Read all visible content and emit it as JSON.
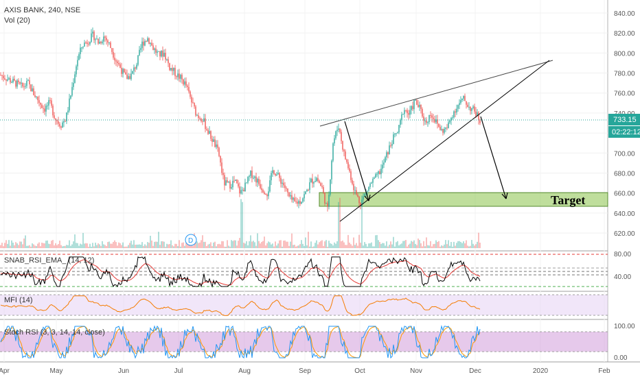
{
  "header": {
    "symbol": "AXIS BANK, 240, NSE",
    "volume_label": "Vol (20)"
  },
  "colors": {
    "up": "#26a69a",
    "down": "#ef5350",
    "rsi_line": "#000000",
    "rsi_ema": "#e53935",
    "mfi_line": "#f57c00",
    "stoch_k": "#2196f3",
    "stoch_d": "#ff9800",
    "target_zone": "#8bc34a",
    "tag": "#26a69a"
  },
  "chart_data": [
    {
      "type": "candlestick",
      "title": "AXIS BANK, 240, NSE",
      "y_ticks": [
        "840.00",
        "820.00",
        "800.00",
        "780.00",
        "760.00",
        "740.00",
        "720.00",
        "700.00",
        "680.00",
        "660.00",
        "640.00",
        "620.00"
      ],
      "ylim": [
        610,
        850
      ],
      "x_ticks": [
        "Apr",
        "May",
        "Jun",
        "Jul",
        "Aug",
        "Sep",
        "Oct",
        "Nov",
        "Dec",
        "2020",
        "Feb"
      ],
      "price_path": [
        [
          0,
          778
        ],
        [
          2,
          772
        ],
        [
          4,
          766
        ],
        [
          5,
          770
        ],
        [
          6,
          760
        ],
        [
          7,
          752
        ],
        [
          8,
          744
        ],
        [
          9,
          750
        ],
        [
          10,
          735
        ],
        [
          11,
          728
        ],
        [
          12,
          735
        ],
        [
          13,
          762
        ],
        [
          14,
          792
        ],
        [
          15,
          808
        ],
        [
          16,
          812
        ],
        [
          17,
          818
        ],
        [
          18,
          810
        ],
        [
          19,
          817
        ],
        [
          20,
          808
        ],
        [
          21,
          795
        ],
        [
          22,
          785
        ],
        [
          23,
          775
        ],
        [
          24,
          778
        ],
        [
          25,
          790
        ],
        [
          26,
          810
        ],
        [
          27,
          815
        ],
        [
          28,
          805
        ],
        [
          29,
          798
        ],
        [
          30,
          800
        ],
        [
          31,
          786
        ],
        [
          32,
          780
        ],
        [
          33,
          775
        ],
        [
          34,
          768
        ],
        [
          35,
          752
        ],
        [
          36,
          738
        ],
        [
          37,
          735
        ],
        [
          38,
          722
        ],
        [
          39,
          712
        ],
        [
          40,
          700
        ],
        [
          41,
          670
        ],
        [
          42,
          668
        ],
        [
          43,
          672
        ],
        [
          44,
          660
        ],
        [
          45,
          668
        ],
        [
          46,
          680
        ],
        [
          47,
          673
        ],
        [
          48,
          665
        ],
        [
          49,
          660
        ],
        [
          50,
          684
        ],
        [
          51,
          676
        ],
        [
          52,
          668
        ],
        [
          53,
          655
        ],
        [
          54,
          650
        ],
        [
          55,
          652
        ],
        [
          56,
          660
        ],
        [
          57,
          672
        ],
        [
          58,
          675
        ],
        [
          59,
          665
        ],
        [
          60,
          642
        ],
        [
          61,
          710
        ],
        [
          62,
          728
        ],
        [
          63,
          700
        ],
        [
          64,
          682
        ],
        [
          65,
          662
        ],
        [
          66,
          650
        ],
        [
          67,
          660
        ],
        [
          68,
          670
        ],
        [
          69,
          676
        ],
        [
          70,
          685
        ],
        [
          71,
          700
        ],
        [
          72,
          714
        ],
        [
          73,
          722
        ],
        [
          74,
          745
        ],
        [
          75,
          738
        ],
        [
          76,
          752
        ],
        [
          77,
          744
        ],
        [
          78,
          730
        ],
        [
          79,
          740
        ],
        [
          80,
          730
        ],
        [
          81,
          722
        ],
        [
          82,
          725
        ],
        [
          83,
          740
        ],
        [
          84,
          748
        ],
        [
          85,
          754
        ],
        [
          86,
          746
        ],
        [
          87,
          742
        ],
        [
          88,
          733
        ]
      ],
      "last_price": "733.15",
      "countdown": "02:22:12",
      "annotations": {
        "target_label": "Target",
        "target_zone": [
          648,
          658
        ],
        "marker": "D"
      }
    },
    {
      "type": "line",
      "title": "SNAB_RSI_EMA_ (14, 12)",
      "y_ticks": [
        "80.00",
        "40.00"
      ],
      "ylim": [
        20,
        90
      ]
    },
    {
      "type": "line",
      "title": "MFI (14)"
    },
    {
      "type": "line",
      "title": "Stoch RSI (3, 3, 14, 14, close)",
      "y_ticks": [
        "100.00",
        "0.00"
      ],
      "ylim": [
        0,
        100
      ]
    }
  ]
}
